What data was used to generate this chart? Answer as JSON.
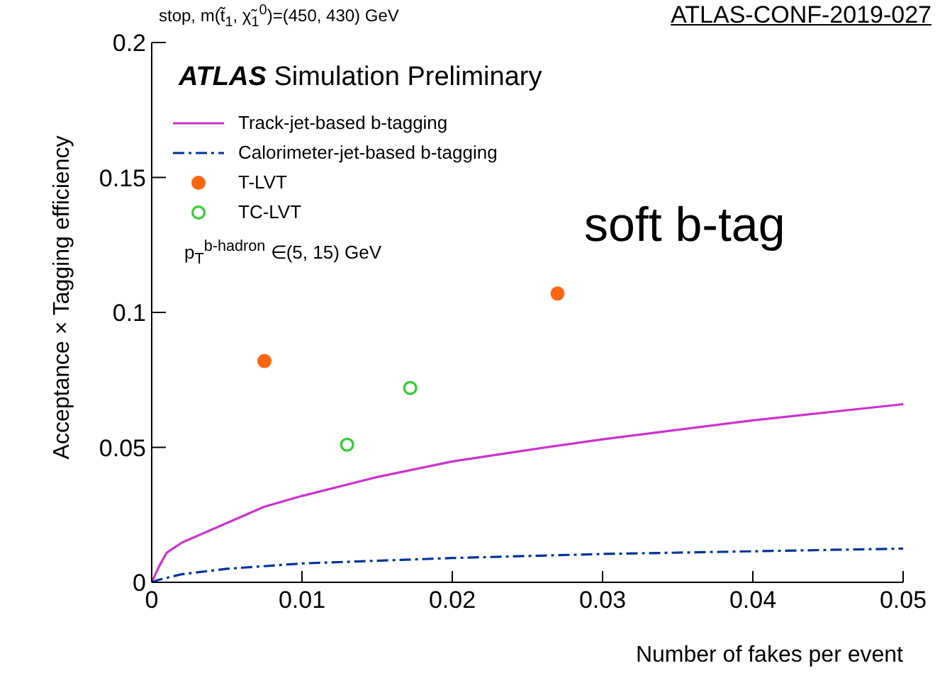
{
  "chart_data": {
    "type": "line",
    "title": "stop, m(t̃$_{1}$, χ̃$_{1}$$^{0}$)=(450, 430) GeV",
    "xlabel": "Number of fakes per event",
    "ylabel": "Acceptance × Tagging efficiency",
    "annotations": [
      "ATLAS-CONF-2019-027",
      "ATLAS Simulation Preliminary",
      "p$_{T}$$^{b-hadron}$ ∈(5, 15) GeV",
      "soft b-tag"
    ],
    "xlim": [
      0,
      0.05
    ],
    "ylim": [
      0,
      0.2
    ],
    "xticks": [
      0,
      0.01,
      0.02,
      0.03,
      0.04,
      0.05
    ],
    "yticks": [
      0,
      0.05,
      0.1,
      0.15,
      0.2
    ],
    "grid": false,
    "legend": "top left",
    "series": [
      {
        "name": "Track-jet-based b-tagging",
        "color": "#cc33cc",
        "line_style": "solid",
        "marker": "none",
        "x": [
          0,
          0.0005,
          0.001,
          0.002,
          0.005,
          0.0075,
          0.01,
          0.015,
          0.02,
          0.025,
          0.03,
          0.04,
          0.05
        ],
        "values": [
          0,
          0.006,
          0.011,
          0.0147,
          0.022,
          0.028,
          0.032,
          0.039,
          0.0448,
          0.049,
          0.053,
          0.06,
          0.066
        ]
      },
      {
        "name": "Calorimeter-jet-based b-tagging",
        "color": "#003399",
        "line_style": "dashed",
        "marker": "none",
        "x": [
          0,
          0.0005,
          0.002,
          0.005,
          0.01,
          0.02,
          0.03,
          0.04,
          0.05
        ],
        "values": [
          0,
          0.001,
          0.003,
          0.005,
          0.007,
          0.009,
          0.0105,
          0.0115,
          0.0125
        ]
      },
      {
        "name": "T-LVT",
        "type": "scatter",
        "color": "#ff6611",
        "marker": "circle",
        "x": [
          0.0075,
          0.027
        ],
        "values": [
          0.082,
          0.107
        ]
      },
      {
        "name": "TC-LVT",
        "type": "scatter",
        "color": "#33cc33",
        "marker": "circle",
        "x": [
          0.013,
          0.0172
        ],
        "values": [
          0.051,
          0.072
        ]
      }
    ]
  }
}
